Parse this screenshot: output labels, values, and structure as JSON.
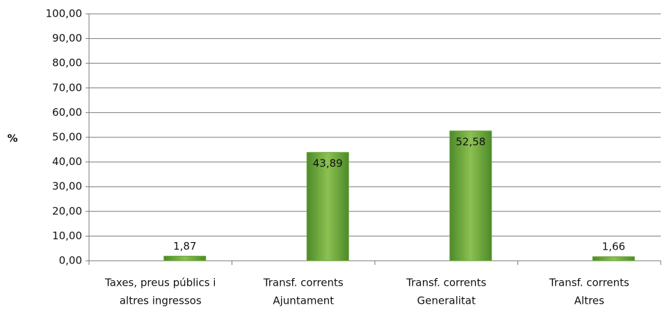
{
  "chart_data": {
    "type": "bar",
    "y_label": "%",
    "categories": [
      [
        "Taxes, preus públics i",
        "altres ingressos"
      ],
      [
        "Transf. corrents",
        "Ajuntament"
      ],
      [
        "Transf. corrents",
        "Generalitat"
      ],
      [
        "Transf. corrents",
        "Altres"
      ]
    ],
    "values": [
      1.87,
      43.89,
      52.58,
      1.66
    ],
    "value_labels": [
      "1,87",
      "43,89",
      "52,58",
      "1,66"
    ],
    "color": "#6aa33a",
    "ylim": [
      0,
      100
    ],
    "yticks": [
      {
        "value": 0,
        "label": "0,00"
      },
      {
        "value": 10,
        "label": "10,00"
      },
      {
        "value": 20,
        "label": "20,00"
      },
      {
        "value": 30,
        "label": "30,00"
      },
      {
        "value": 40,
        "label": "40,00"
      },
      {
        "value": 50,
        "label": "50,00"
      },
      {
        "value": 60,
        "label": "60,00"
      },
      {
        "value": 70,
        "label": "70,00"
      },
      {
        "value": 80,
        "label": "80,00"
      },
      {
        "value": 90,
        "label": "90,00"
      },
      {
        "value": 100,
        "label": "100,00"
      }
    ],
    "grid": true
  }
}
